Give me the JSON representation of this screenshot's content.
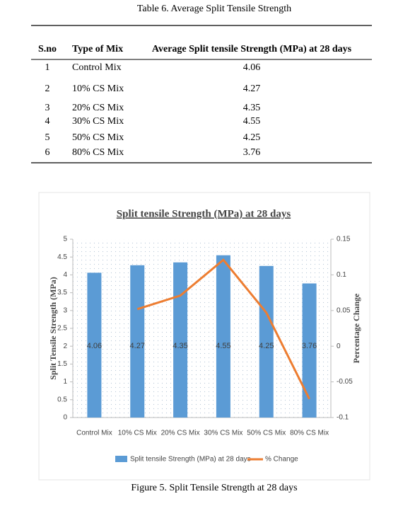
{
  "table": {
    "caption": "Table 6. Average Split Tensile Strength",
    "columns": [
      "S.no",
      "Type of Mix",
      "Average Split tensile Strength (MPa) at 28 days"
    ],
    "rows": [
      [
        "1",
        "Control Mix",
        "4.06"
      ],
      [
        "2",
        "10% CS Mix",
        "4.27"
      ],
      [
        "3",
        "20% CS Mix",
        "4.35"
      ],
      [
        "4",
        "30% CS Mix",
        "4.55"
      ],
      [
        "5",
        "50% CS Mix",
        "4.25"
      ],
      [
        "6",
        "80% CS Mix",
        "3.76"
      ]
    ]
  },
  "chart_data": {
    "type": "bar-line",
    "title": "Split tensile Strength (MPa) at 28 days",
    "y_label": "Split Tensile Strength (MPa)",
    "y2_label": "Percentage Change",
    "categories": [
      "Control Mix",
      "10% CS Mix",
      "20% CS Mix",
      "30% CS Mix",
      "50% CS Mix",
      "80% CS Mix"
    ],
    "series": [
      {
        "name": "Split tensile Strength (MPa) at 28 days",
        "type": "bar",
        "color": "#5b9bd5",
        "values": [
          4.06,
          4.27,
          4.35,
          4.55,
          4.25,
          3.76
        ]
      },
      {
        "name": "% Change",
        "type": "line",
        "axis": "y2",
        "color": "#ed7d31",
        "values": [
          null,
          0.052,
          0.071,
          0.121,
          0.047,
          -0.074
        ]
      }
    ],
    "ylim": [
      0,
      5
    ],
    "yticks": [
      0,
      0.5,
      1,
      1.5,
      2,
      2.5,
      3,
      3.5,
      4,
      4.5,
      5
    ],
    "y2lim": [
      -0.1,
      0.15
    ],
    "y2ticks": [
      -0.1,
      -0.05,
      0,
      0.05,
      0.1,
      0.15
    ],
    "legend": "bottom"
  },
  "figure_caption": "Figure 5. Split Tensile Strength at 28 days"
}
